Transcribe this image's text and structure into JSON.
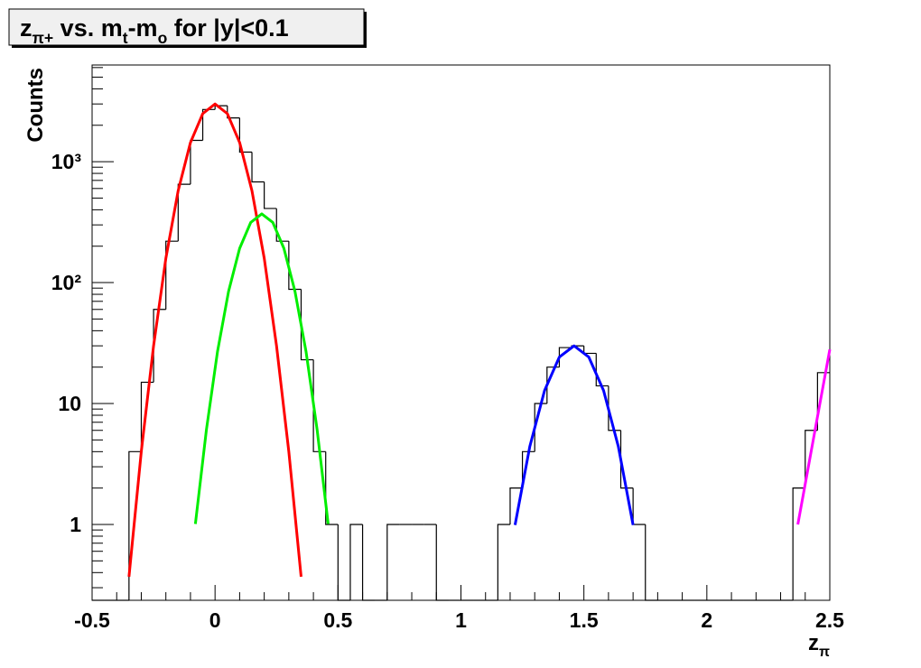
{
  "chart_data": {
    "type": "histogram",
    "title": [
      "z",
      "π+",
      " vs. m",
      "t",
      "-m",
      "o",
      " for |y|<0.1"
    ],
    "y_label": "Counts",
    "x_label": [
      "z",
      "π"
    ],
    "xlim": [
      -0.5,
      2.5
    ],
    "xticks": [
      -0.5,
      0,
      0.5,
      1,
      1.5,
      2,
      2.5
    ],
    "ylim": [
      0.236,
      6300
    ],
    "log_y": true,
    "yticks": [
      1,
      10,
      {
        "value": 100,
        "label": "10²"
      },
      {
        "value": 1000,
        "label": "10³"
      }
    ],
    "color": "#000000",
    "bins": [
      -0.5,
      -0.45,
      -0.4,
      -0.35,
      -0.3,
      -0.25,
      -0.2,
      -0.15,
      -0.1,
      -0.05,
      0,
      0.05,
      0.1,
      0.15,
      0.2,
      0.25,
      0.3,
      0.35,
      0.4,
      0.45,
      0.5,
      0.55,
      0.6,
      0.65,
      0.7,
      0.75,
      0.8,
      0.85,
      0.9,
      0.95,
      1,
      1.05,
      1.1,
      1.15,
      1.2,
      1.25,
      1.3,
      1.35,
      1.4,
      1.45,
      1.5,
      1.55,
      1.6,
      1.65,
      1.7,
      1.75,
      1.8,
      1.85,
      1.9,
      1.95,
      2,
      2.05,
      2.1,
      2.15,
      2.2,
      2.25,
      2.3,
      2.35,
      2.4,
      2.45,
      2.5
    ],
    "values": [
      0,
      0,
      0,
      4,
      15,
      60,
      220,
      650,
      1500,
      2700,
      2900,
      2300,
      1200,
      680,
      410,
      220,
      88,
      23,
      4,
      1,
      0,
      1,
      0,
      0,
      1,
      1,
      1,
      1,
      0,
      0,
      0,
      0,
      0,
      1,
      2,
      4,
      10,
      20,
      29,
      30,
      26,
      14,
      6,
      2,
      1,
      0,
      0,
      0,
      0,
      0,
      0,
      0,
      0,
      0,
      0,
      0,
      0,
      2,
      6,
      18
    ],
    "series": [
      {
        "type": "line",
        "color": "#ff0000",
        "x": [
          -0.35,
          -0.3,
          -0.25,
          -0.2,
          -0.15,
          -0.1,
          -0.05,
          0,
          0.05,
          0.1,
          0.15,
          0.2,
          0.25,
          0.3,
          0.35
        ],
        "values": [
          0.37,
          4.0,
          30,
          159,
          575,
          1439,
          2496,
          3000,
          2496,
          1439,
          575,
          159,
          30,
          4.0,
          0.37
        ]
      },
      {
        "type": "line",
        "color": "#00ee00",
        "x": [
          -0.08,
          -0.035,
          0.01,
          0.055,
          0.1,
          0.145,
          0.19,
          0.235,
          0.28,
          0.325,
          0.37,
          0.415,
          0.46
        ],
        "values": [
          1.01,
          6.1,
          26.9,
          84.7,
          192,
          314,
          370,
          314,
          192,
          84.7,
          26.9,
          6.1,
          1.01
        ]
      },
      {
        "type": "line",
        "color": "#0000ff",
        "x": [
          1.22,
          1.28,
          1.34,
          1.4,
          1.46,
          1.52,
          1.58,
          1.64,
          1.7
        ],
        "values": [
          0.99,
          4.41,
          12.8,
          24.2,
          30,
          24.2,
          12.8,
          4.41,
          0.99
        ]
      },
      {
        "type": "line",
        "color": "#ff00ff",
        "x": [
          2.37,
          2.4,
          2.45,
          2.5
        ],
        "values": [
          1,
          2.16,
          7.8,
          28
        ]
      }
    ]
  }
}
